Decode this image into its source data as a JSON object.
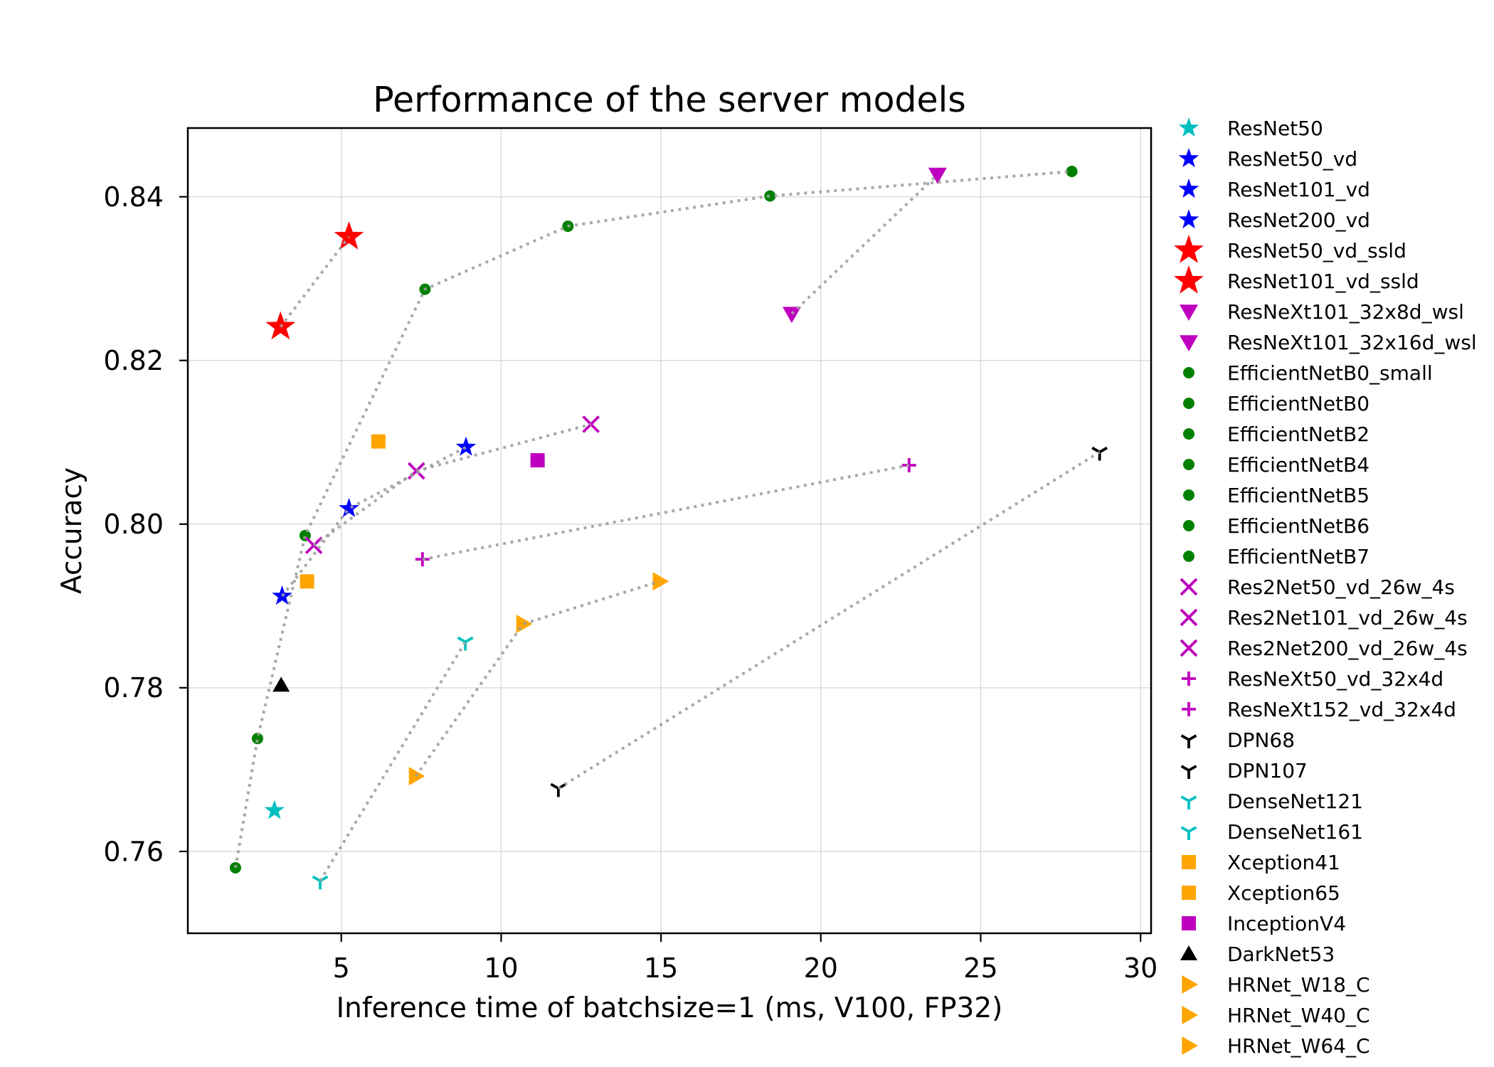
{
  "chart_data": {
    "type": "scatter",
    "title": "Performance of the server models",
    "xlabel": "Inference time of batchsize=1 (ms, V100, FP32)",
    "ylabel": "Accuracy",
    "xlim": [
      0.2,
      30.33
    ],
    "ylim": [
      0.75,
      0.8484
    ],
    "xticks": [
      5,
      10,
      15,
      20,
      25,
      30
    ],
    "xtick_labels": [
      "5",
      "10",
      "15",
      "20",
      "25",
      "30"
    ],
    "yticks": [
      0.76,
      0.78,
      0.8,
      0.82,
      0.84
    ],
    "ytick_labels": [
      "0.76",
      "0.78",
      "0.80",
      "0.82",
      "0.84"
    ],
    "grid": true,
    "legend": "outside-right",
    "line_color": "#a0a0a0",
    "groups": [
      {
        "marker": "star",
        "color": "#00bfbf",
        "connected": false,
        "series": [
          {
            "name": "ResNet50",
            "x": 2.91,
            "y": 0.765
          }
        ]
      },
      {
        "marker": "star",
        "color": "#0000ff",
        "connected": true,
        "series": [
          {
            "name": "ResNet50_vd",
            "x": 3.15,
            "y": 0.7912
          },
          {
            "name": "ResNet101_vd",
            "x": 5.24,
            "y": 0.8019
          },
          {
            "name": "ResNet200_vd",
            "x": 8.9,
            "y": 0.8094
          }
        ]
      },
      {
        "marker": "big-star",
        "color": "#ff0000",
        "connected": true,
        "series": [
          {
            "name": "ResNet50_vd_ssld",
            "x": 3.1,
            "y": 0.8241
          },
          {
            "name": "ResNet101_vd_ssld",
            "x": 5.24,
            "y": 0.8351
          }
        ]
      },
      {
        "marker": "triangle-down",
        "color": "#bf00bf",
        "connected": true,
        "series": [
          {
            "name": "ResNeXt101_32x8d_wsl",
            "x": 19.09,
            "y": 0.8257
          },
          {
            "name": "ResNeXt101_32x16d_wsl",
            "x": 23.65,
            "y": 0.8427
          }
        ]
      },
      {
        "marker": "circle",
        "color": "#008000",
        "connected": true,
        "series": [
          {
            "name": "EfficientNetB0_small",
            "x": 1.69,
            "y": 0.758
          },
          {
            "name": "EfficientNetB0",
            "x": 2.38,
            "y": 0.7738
          },
          {
            "name": "EfficientNetB2",
            "x": 3.87,
            "y": 0.7986
          },
          {
            "name": "EfficientNetB4",
            "x": 7.62,
            "y": 0.8287
          },
          {
            "name": "EfficientNetB5",
            "x": 12.09,
            "y": 0.8364
          },
          {
            "name": "EfficientNetB6",
            "x": 18.41,
            "y": 0.8401
          },
          {
            "name": "EfficientNetB7",
            "x": 27.85,
            "y": 0.8431
          }
        ]
      },
      {
        "marker": "x",
        "color": "#bf00bf",
        "connected": true,
        "series": [
          {
            "name": "Res2Net50_vd_26w_4s",
            "x": 4.14,
            "y": 0.7974
          },
          {
            "name": "Res2Net101_vd_26w_4s",
            "x": 7.35,
            "y": 0.8065
          },
          {
            "name": "Res2Net200_vd_26w_4s",
            "x": 12.81,
            "y": 0.8122
          }
        ]
      },
      {
        "marker": "plus",
        "color": "#bf00bf",
        "connected": true,
        "series": [
          {
            "name": "ResNeXt50_vd_32x4d",
            "x": 7.54,
            "y": 0.7957
          },
          {
            "name": "ResNeXt152_vd_32x4d",
            "x": 22.76,
            "y": 0.8072
          }
        ]
      },
      {
        "marker": "tri-down",
        "color": "#000000",
        "connected": true,
        "series": [
          {
            "name": "DPN68",
            "x": 11.79,
            "y": 0.7677
          },
          {
            "name": "DPN107",
            "x": 28.72,
            "y": 0.8088
          }
        ]
      },
      {
        "marker": "tri-down",
        "color": "#00bfbf",
        "connected": true,
        "series": [
          {
            "name": "DenseNet121",
            "x": 4.34,
            "y": 0.7564
          },
          {
            "name": "DenseNet161",
            "x": 8.88,
            "y": 0.7856
          }
        ]
      },
      {
        "marker": "square",
        "color": "#ffa500",
        "connected": false,
        "series": [
          {
            "name": "Xception41",
            "x": 3.93,
            "y": 0.793
          },
          {
            "name": "Xception65",
            "x": 6.16,
            "y": 0.8101
          }
        ]
      },
      {
        "marker": "square",
        "color": "#bf00bf",
        "connected": false,
        "series": [
          {
            "name": "InceptionV4",
            "x": 11.14,
            "y": 0.8078
          }
        ]
      },
      {
        "marker": "triangle-up",
        "color": "#000000",
        "connected": false,
        "series": [
          {
            "name": "DarkNet53",
            "x": 3.12,
            "y": 0.7803
          }
        ]
      },
      {
        "marker": "triangle-right",
        "color": "#ffa500",
        "connected": true,
        "series": [
          {
            "name": "HRNet_W18_C",
            "x": 7.33,
            "y": 0.7692
          },
          {
            "name": "HRNet_W40_C",
            "x": 10.69,
            "y": 0.7878
          },
          {
            "name": "HRNet_W64_C",
            "x": 14.96,
            "y": 0.793
          }
        ]
      }
    ]
  }
}
